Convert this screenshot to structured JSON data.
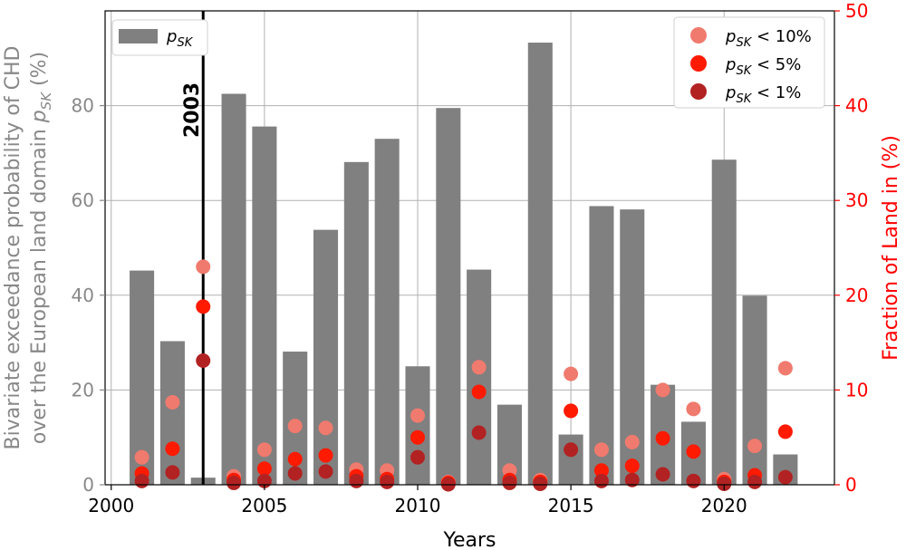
{
  "chart_data": {
    "type": "bar",
    "xlabel": "Years",
    "ylabel_left": "Bivariate exceedance probability of CHD over the European land domain p_SK (%)",
    "ylabel_left_lines": [
      "Bivariate exceedance probability of CHD",
      "over the European land domain p_SK (%)"
    ],
    "ylabel_right": "Fraction of Land in (%)",
    "x_ticks": [
      2000,
      2005,
      2010,
      2015,
      2020
    ],
    "y_left_ticks": [
      0,
      20,
      40,
      60,
      80
    ],
    "y_right_ticks": [
      0,
      10,
      20,
      30,
      40,
      50
    ],
    "xlim": [
      1999.8,
      2023.6
    ],
    "ylim_left": [
      0,
      100
    ],
    "ylim_right": [
      0,
      50
    ],
    "grid": true,
    "annotation": {
      "text": "2003",
      "x": 2003
    },
    "bar_legend_label": "p_SK",
    "bar_color": "#808080",
    "years": [
      2001,
      2002,
      2003,
      2004,
      2005,
      2006,
      2007,
      2008,
      2009,
      2010,
      2011,
      2012,
      2013,
      2014,
      2015,
      2016,
      2017,
      2018,
      2019,
      2020,
      2021,
      2022
    ],
    "bar_values": [
      45.2,
      30.3,
      1.5,
      82.5,
      75.6,
      28.1,
      53.8,
      68.1,
      73.0,
      25.0,
      79.5,
      45.4,
      16.9,
      93.3,
      10.6,
      58.8,
      58.1,
      21.1,
      13.3,
      68.6,
      39.9,
      6.4
    ],
    "series": [
      {
        "name": "p_SK < 10%",
        "color": "#f07a6e",
        "values": [
          2.9,
          8.7,
          23.0,
          0.9,
          3.7,
          6.2,
          6.0,
          1.6,
          1.5,
          7.3,
          0.3,
          12.4,
          1.5,
          0.5,
          11.7,
          3.7,
          4.5,
          10.0,
          8.0,
          0.6,
          4.1,
          12.3
        ]
      },
      {
        "name": "p_SK < 5%",
        "color": "#ff1a00",
        "values": [
          1.2,
          3.8,
          18.8,
          0.5,
          1.7,
          2.7,
          3.1,
          0.9,
          0.6,
          5.0,
          0.2,
          9.8,
          0.5,
          0.3,
          7.8,
          1.5,
          2.0,
          4.9,
          3.5,
          0.3,
          1.0,
          5.6
        ]
      },
      {
        "name": "p_SK < 1%",
        "color": "#b22222",
        "values": [
          0.4,
          1.3,
          13.1,
          0.2,
          0.4,
          1.2,
          1.4,
          0.4,
          0.3,
          2.9,
          0.05,
          5.5,
          0.2,
          0.1,
          3.7,
          0.4,
          0.5,
          1.1,
          0.4,
          0.1,
          0.3,
          0.8
        ]
      }
    ]
  }
}
